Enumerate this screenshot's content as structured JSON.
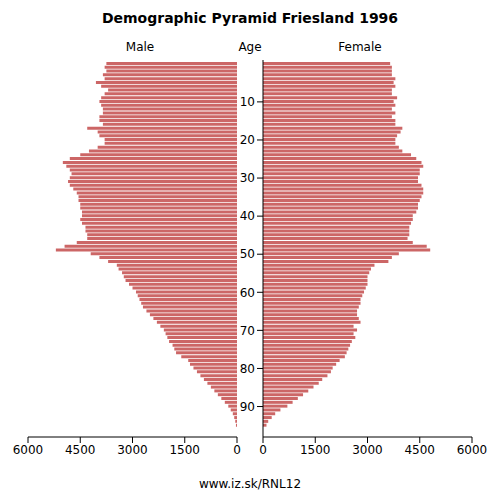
{
  "chart_data": {
    "type": "bar",
    "orientation": "horizontal",
    "title": "Demographic Pyramid Friesland 1996",
    "y_label": "Age",
    "source": "www.iz.sk/RNL12",
    "categories": [
      0,
      1,
      2,
      3,
      4,
      5,
      6,
      7,
      8,
      9,
      10,
      11,
      12,
      13,
      14,
      15,
      16,
      17,
      18,
      19,
      20,
      21,
      22,
      23,
      24,
      25,
      26,
      27,
      28,
      29,
      30,
      31,
      32,
      33,
      34,
      35,
      36,
      37,
      38,
      39,
      40,
      41,
      42,
      43,
      44,
      45,
      46,
      47,
      48,
      49,
      50,
      51,
      52,
      53,
      54,
      55,
      56,
      57,
      58,
      59,
      60,
      61,
      62,
      63,
      64,
      65,
      66,
      67,
      68,
      69,
      70,
      71,
      72,
      73,
      74,
      75,
      76,
      77,
      78,
      79,
      80,
      81,
      82,
      83,
      84,
      85,
      86,
      87,
      88,
      89,
      90,
      91,
      92,
      93,
      94,
      95
    ],
    "series": [
      {
        "name": "Male",
        "color": "#cc6666",
        "values": [
          3750,
          3800,
          3750,
          3850,
          3800,
          4050,
          3900,
          3700,
          3800,
          3900,
          3950,
          3900,
          3850,
          3850,
          3950,
          3950,
          3850,
          4300,
          4000,
          3950,
          3800,
          3800,
          4000,
          4250,
          4500,
          4800,
          5000,
          4900,
          4800,
          4750,
          4800,
          4850,
          4800,
          4700,
          4600,
          4550,
          4550,
          4500,
          4500,
          4450,
          4450,
          4500,
          4450,
          4350,
          4350,
          4300,
          4300,
          4600,
          4950,
          5200,
          4200,
          3950,
          3700,
          3450,
          3400,
          3300,
          3250,
          3200,
          3100,
          3000,
          2900,
          2850,
          2800,
          2750,
          2700,
          2600,
          2500,
          2400,
          2300,
          2200,
          2100,
          2050,
          2000,
          1950,
          1850,
          1800,
          1750,
          1600,
          1400,
          1350,
          1250,
          1150,
          1050,
          950,
          850,
          750,
          650,
          550,
          450,
          350,
          250,
          180,
          120,
          80,
          50,
          30
        ]
      },
      {
        "name": "Female",
        "color": "#cc6666",
        "values": [
          3650,
          3700,
          3700,
          3700,
          3800,
          3750,
          3800,
          3700,
          3700,
          3850,
          3750,
          3800,
          3700,
          3800,
          3700,
          3800,
          3800,
          4000,
          3950,
          3850,
          3800,
          3800,
          3900,
          4000,
          4250,
          4400,
          4550,
          4600,
          4500,
          4500,
          4450,
          4450,
          4550,
          4600,
          4600,
          4550,
          4500,
          4450,
          4450,
          4400,
          4300,
          4300,
          4250,
          4200,
          4200,
          4200,
          4150,
          4300,
          4700,
          4800,
          3900,
          3700,
          3600,
          3200,
          3100,
          3050,
          3000,
          3000,
          3000,
          2950,
          2900,
          2850,
          2800,
          2800,
          2750,
          2700,
          2700,
          2750,
          2800,
          2600,
          2700,
          2600,
          2650,
          2550,
          2500,
          2450,
          2400,
          2350,
          2200,
          2100,
          2000,
          1950,
          1850,
          1700,
          1600,
          1450,
          1300,
          1150,
          1000,
          850,
          700,
          500,
          350,
          250,
          150,
          100
        ]
      }
    ],
    "xlim": [
      0,
      6000
    ],
    "xticks": [
      0,
      1500,
      3000,
      4500,
      6000
    ],
    "ylim": [
      -1,
      98
    ],
    "yticks": [
      10,
      20,
      30,
      40,
      50,
      60,
      70,
      80,
      90
    ],
    "grid": false
  }
}
